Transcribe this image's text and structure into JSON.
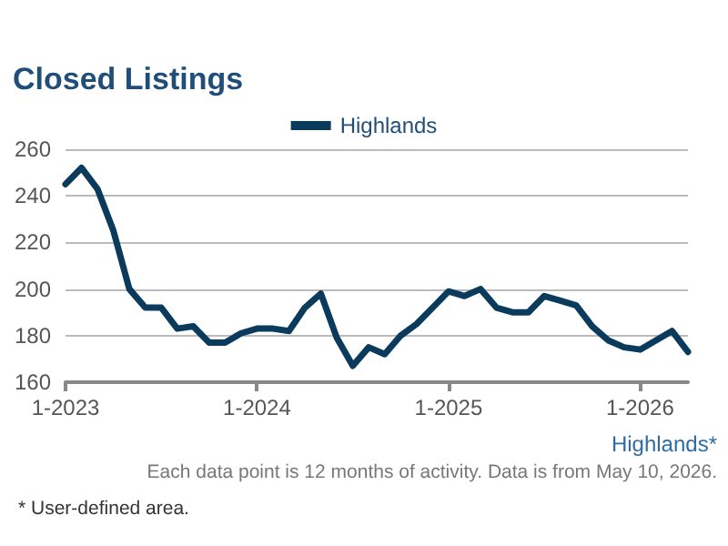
{
  "chart_data": {
    "type": "line",
    "title": "Closed Listings",
    "categories": [
      "1-2023",
      null,
      null,
      null,
      null,
      null,
      null,
      null,
      null,
      null,
      null,
      null,
      "1-2024",
      null,
      null,
      null,
      null,
      null,
      null,
      null,
      null,
      null,
      null,
      null,
      "1-2025",
      null,
      null,
      null,
      null,
      null,
      null,
      null,
      null,
      null,
      null,
      null,
      "1-2026",
      null,
      null,
      null
    ],
    "series": [
      {
        "name": "Highlands",
        "color": "#0b3b5c",
        "values": [
          245,
          252,
          243,
          225,
          200,
          192,
          192,
          183,
          184,
          177,
          177,
          181,
          183,
          183,
          182,
          192,
          198,
          179,
          167,
          175,
          172,
          180,
          185,
          192,
          199,
          197,
          200,
          192,
          190,
          190,
          197,
          195,
          193,
          184,
          178,
          175,
          174,
          178,
          182,
          173
        ]
      }
    ],
    "ylim": [
      160,
      260
    ],
    "yticks": [
      160,
      180,
      200,
      220,
      240,
      260
    ],
    "grid": "y",
    "legend": "top",
    "marker": "none",
    "line_style": "solid",
    "annotations": [
      "Highlands*",
      "Each data point is 12 months of activity. Data is from May 10, 2026.",
      "* User-defined area."
    ]
  }
}
